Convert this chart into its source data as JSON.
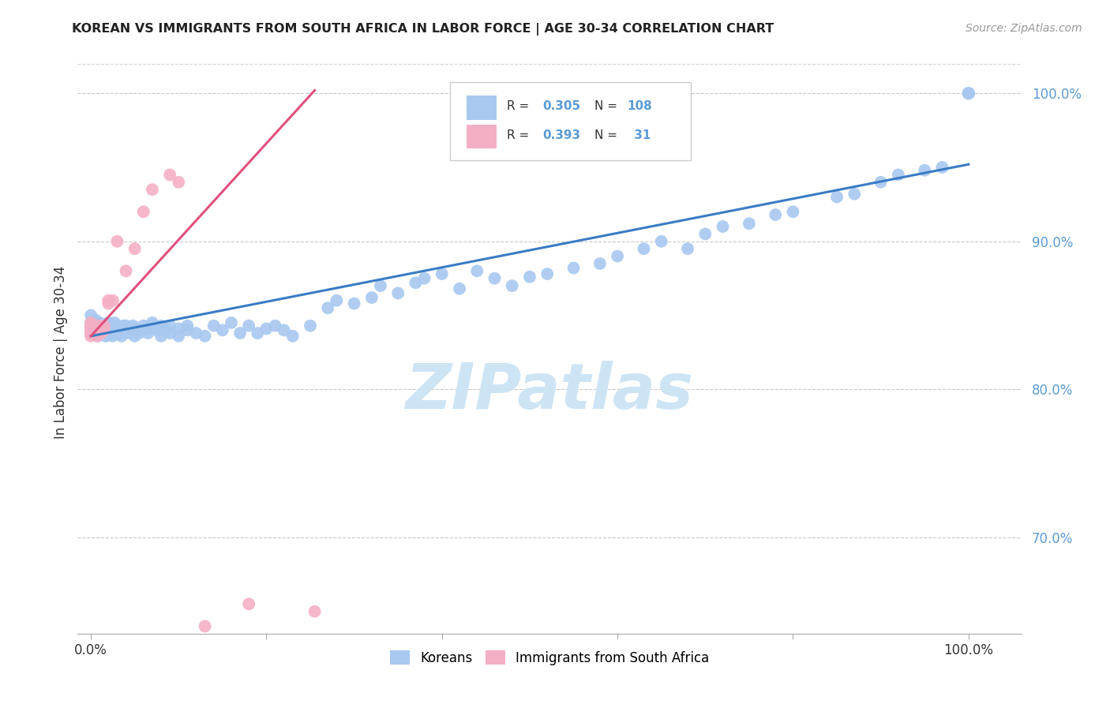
{
  "title": "KOREAN VS IMMIGRANTS FROM SOUTH AFRICA IN LABOR FORCE | AGE 30-34 CORRELATION CHART",
  "source": "Source: ZipAtlas.com",
  "ylabel": "In Labor Force | Age 30-34",
  "legend_r_korean": "0.305",
  "legend_n_korean": "108",
  "legend_r_sa": "0.393",
  "legend_n_sa": " 31",
  "korean_color": "#a8c8f0",
  "sa_color": "#f4afc4",
  "trendline_korean_color": "#3a7cc4",
  "trendline_sa_color": "#e0507a",
  "label_color": "#5b9bd5",
  "watermark_color": "#cde4f5",
  "y_min": 0.635,
  "y_max": 1.025,
  "x_min": -0.015,
  "x_max": 1.06,
  "yticks": [
    0.7,
    0.8,
    0.9,
    1.0
  ],
  "ytick_labels": [
    "70.0%",
    "80.0%",
    "90.0%",
    "100.0%"
  ],
  "xtick_labels_show": [
    "0.0%",
    "100.0%"
  ],
  "korean_trend_x0": 0.0,
  "korean_trend_y0": 0.836,
  "korean_trend_x1": 1.0,
  "korean_trend_y1": 0.952,
  "sa_trend_x0": 0.0,
  "sa_trend_y0": 0.836,
  "sa_trend_x1": 0.255,
  "sa_trend_y1": 1.002,
  "korean_x": [
    0.0,
    0.0,
    0.0,
    0.0,
    0.005,
    0.005,
    0.007,
    0.008,
    0.01,
    0.01,
    0.01,
    0.012,
    0.013,
    0.015,
    0.015,
    0.015,
    0.017,
    0.018,
    0.018,
    0.02,
    0.02,
    0.02,
    0.022,
    0.023,
    0.025,
    0.025,
    0.027,
    0.027,
    0.028,
    0.03,
    0.03,
    0.033,
    0.035,
    0.035,
    0.037,
    0.04,
    0.04,
    0.043,
    0.045,
    0.048,
    0.05,
    0.05,
    0.055,
    0.06,
    0.06,
    0.065,
    0.07,
    0.07,
    0.075,
    0.08,
    0.08,
    0.085,
    0.09,
    0.09,
    0.1,
    0.1,
    0.11,
    0.11,
    0.12,
    0.13,
    0.14,
    0.15,
    0.16,
    0.17,
    0.18,
    0.19,
    0.2,
    0.21,
    0.22,
    0.23,
    0.25,
    0.27,
    0.28,
    0.3,
    0.32,
    0.33,
    0.35,
    0.37,
    0.38,
    0.4,
    0.42,
    0.44,
    0.46,
    0.48,
    0.5,
    0.52,
    0.55,
    0.58,
    0.6,
    0.63,
    0.65,
    0.68,
    0.7,
    0.72,
    0.75,
    0.78,
    0.8,
    0.85,
    0.87,
    0.9,
    0.92,
    0.95,
    0.97,
    1.0,
    1.0,
    1.0,
    1.0,
    1.0
  ],
  "korean_y": [
    0.84,
    0.838,
    0.845,
    0.85,
    0.842,
    0.847,
    0.84,
    0.836,
    0.84,
    0.845,
    0.843,
    0.838,
    0.841,
    0.84,
    0.843,
    0.838,
    0.836,
    0.841,
    0.838,
    0.84,
    0.845,
    0.837,
    0.841,
    0.838,
    0.843,
    0.836,
    0.84,
    0.845,
    0.838,
    0.84,
    0.843,
    0.838,
    0.841,
    0.836,
    0.843,
    0.838,
    0.843,
    0.84,
    0.838,
    0.843,
    0.836,
    0.841,
    0.838,
    0.84,
    0.843,
    0.838,
    0.841,
    0.845,
    0.84,
    0.836,
    0.843,
    0.84,
    0.838,
    0.843,
    0.841,
    0.836,
    0.843,
    0.84,
    0.838,
    0.836,
    0.843,
    0.84,
    0.845,
    0.838,
    0.843,
    0.838,
    0.841,
    0.843,
    0.84,
    0.836,
    0.843,
    0.855,
    0.86,
    0.858,
    0.862,
    0.87,
    0.865,
    0.872,
    0.875,
    0.878,
    0.868,
    0.88,
    0.875,
    0.87,
    0.876,
    0.878,
    0.882,
    0.885,
    0.89,
    0.895,
    0.9,
    0.895,
    0.905,
    0.91,
    0.912,
    0.918,
    0.92,
    0.93,
    0.932,
    0.94,
    0.945,
    0.948,
    0.95,
    1.0,
    1.0,
    1.0,
    1.0,
    1.0
  ],
  "sa_x": [
    0.0,
    0.0,
    0.0,
    0.0,
    0.0,
    0.0,
    0.0,
    0.0,
    0.0,
    0.0,
    0.005,
    0.007,
    0.008,
    0.01,
    0.01,
    0.012,
    0.015,
    0.015,
    0.02,
    0.02,
    0.025,
    0.03,
    0.04,
    0.05,
    0.06,
    0.07,
    0.09,
    0.1,
    0.13,
    0.18,
    0.255
  ],
  "sa_y": [
    0.838,
    0.84,
    0.842,
    0.836,
    0.843,
    0.838,
    0.84,
    0.845,
    0.838,
    0.843,
    0.84,
    0.836,
    0.843,
    0.838,
    0.841,
    0.838,
    0.84,
    0.843,
    0.86,
    0.858,
    0.86,
    0.9,
    0.88,
    0.895,
    0.92,
    0.935,
    0.945,
    0.94,
    0.64,
    0.655,
    0.65
  ]
}
